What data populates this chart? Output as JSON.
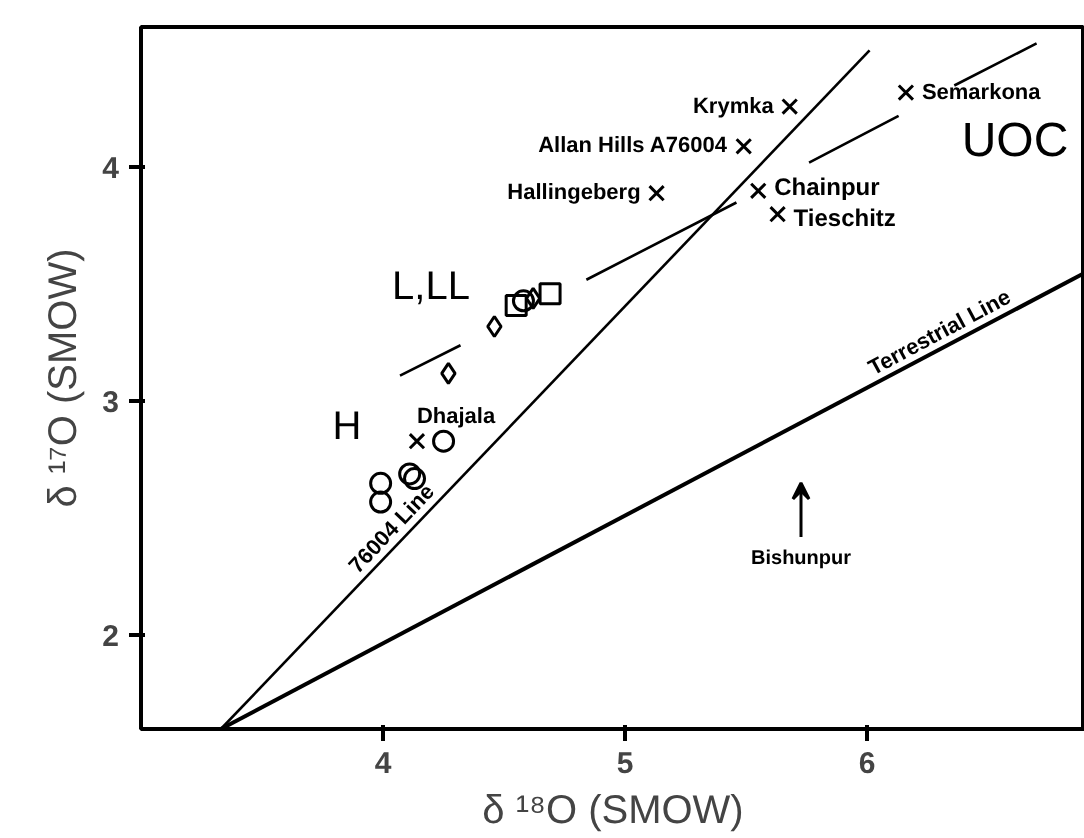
{
  "chart_data": {
    "type": "scatter",
    "xlabel": "δ ¹⁸O (SMOW)",
    "ylabel": "δ ¹⁷O (SMOW)",
    "xlim": [
      3.0,
      6.9
    ],
    "ylim": [
      1.6,
      4.6
    ],
    "xticks": [
      4,
      5,
      6
    ],
    "yticks": [
      2,
      3,
      4
    ],
    "grid": false,
    "series": [
      {
        "marker": "cross",
        "color": "#000000",
        "x": [
          5.68,
          5.49,
          5.13,
          5.55,
          5.63,
          6.16,
          4.14
        ],
        "values": [
          4.26,
          4.09,
          3.89,
          3.9,
          3.8,
          4.32,
          2.83
        ]
      },
      {
        "marker": "circle",
        "color": "#000000",
        "x": [
          3.99,
          3.99,
          4.11,
          4.13,
          4.25,
          4.58
        ],
        "values": [
          2.65,
          2.57,
          2.69,
          2.67,
          2.83,
          3.43
        ]
      },
      {
        "marker": "diamond",
        "color": "#000000",
        "x": [
          4.27,
          4.46,
          4.62
        ],
        "values": [
          3.12,
          3.32,
          3.44
        ]
      },
      {
        "marker": "square",
        "color": "#000000",
        "x": [
          4.55,
          4.69
        ],
        "values": [
          3.41,
          3.46
        ]
      },
      {
        "type": "line",
        "name": "76004 Line",
        "color": "#000000",
        "line_style": "solid",
        "x": [
          3.33,
          6.01
        ],
        "values": [
          1.6,
          4.5
        ]
      },
      {
        "type": "line",
        "name": "Terrestrial Line",
        "color": "#000000",
        "line_style": "solid",
        "x": [
          3.33,
          6.9
        ],
        "values": [
          1.6,
          3.55
        ]
      },
      {
        "type": "line",
        "color": "#000000",
        "line_style": "solid",
        "x": [
          4.07,
          4.32,
          4.58,
          4.84,
          5.46,
          5.61,
          5.76,
          6.13,
          6.25,
          6.36,
          6.7
        ],
        "values": [
          3.11,
          3.24,
          null,
          3.52,
          3.85,
          null,
          4.02,
          4.22,
          null,
          4.35,
          4.53
        ]
      }
    ],
    "annotations": [
      {
        "text": "Krymka",
        "x": 5.68,
        "y": 4.26
      },
      {
        "text": "Allan Hills A76004",
        "x": 5.49,
        "y": 4.09
      },
      {
        "text": "Hallingeberg",
        "x": 5.13,
        "y": 3.89
      },
      {
        "text": "Chainpur",
        "x": 5.55,
        "y": 3.9
      },
      {
        "text": "Tieschitz",
        "x": 5.63,
        "y": 3.8
      },
      {
        "text": "Semarkona",
        "x": 6.16,
        "y": 4.32
      },
      {
        "text": "Dhajala",
        "x": 4.14,
        "y": 2.83
      },
      "L,LL",
      "H",
      "UOC",
      "Bishunpur"
    ]
  }
}
